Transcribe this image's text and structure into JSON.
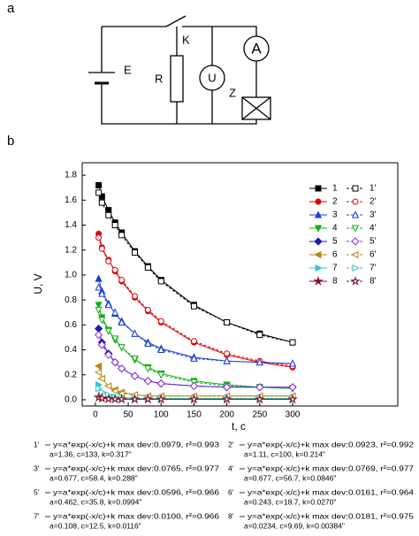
{
  "diagram": {
    "panel_label": "a",
    "battery": "E",
    "resistor": "R",
    "switch": "K",
    "voltmeter": "U",
    "ammeter": "A",
    "load": "Z"
  },
  "chart_data": {
    "type": "scatter",
    "panel_label": "b",
    "x_label": "t, c",
    "y_label": "U, V",
    "x": [
      5,
      10,
      20,
      30,
      40,
      60,
      80,
      100,
      150,
      200,
      250,
      300
    ],
    "xlim": [
      -20,
      460
    ],
    "ylim": [
      -0.05,
      1.9
    ],
    "xticks": [
      0,
      50,
      100,
      150,
      200,
      250,
      300
    ],
    "yticks": [
      {
        "value": 0,
        "label": "0.0"
      },
      0.2,
      0.4,
      0.6,
      0.8,
      {
        "value": 1,
        "label": "1.0"
      },
      1.2,
      1.4,
      1.6,
      1.8
    ],
    "series": [
      {
        "name": "1",
        "color": "#000000",
        "marker": "square",
        "filled": true,
        "values": [
          1.72,
          1.63,
          1.52,
          1.42,
          1.34,
          1.19,
          1.07,
          0.96,
          0.76,
          0.62,
          0.53,
          0.46
        ]
      },
      {
        "name": "1'",
        "color": "#000000",
        "marker": "square",
        "filled": false,
        "values": [
          1.66,
          1.58,
          1.48,
          1.4,
          1.32,
          1.18,
          1.06,
          0.95,
          0.75,
          0.62,
          0.52,
          0.46
        ]
      },
      {
        "name": "2",
        "color": "#e00000",
        "marker": "circle",
        "filled": true,
        "values": [
          1.33,
          1.22,
          1.12,
          1.03,
          0.95,
          0.82,
          0.71,
          0.62,
          0.46,
          0.36,
          0.3,
          0.26
        ]
      },
      {
        "name": "2'",
        "color": "#e00000",
        "marker": "circle",
        "filled": false,
        "values": [
          1.3,
          1.21,
          1.11,
          1.04,
          0.96,
          0.83,
          0.72,
          0.63,
          0.47,
          0.37,
          0.31,
          0.27
        ]
      },
      {
        "name": "3",
        "color": "#1a3fd6",
        "marker": "triangle-up",
        "filled": true,
        "values": [
          0.97,
          0.87,
          0.77,
          0.69,
          0.63,
          0.53,
          0.46,
          0.41,
          0.34,
          0.31,
          0.3,
          0.29
        ]
      },
      {
        "name": "3'",
        "color": "#1a3fd6",
        "marker": "triangle-up",
        "filled": false,
        "values": [
          0.9,
          0.85,
          0.76,
          0.7,
          0.62,
          0.53,
          0.45,
          0.4,
          0.33,
          0.31,
          0.3,
          0.29
        ]
      },
      {
        "name": "4",
        "color": "#10b010",
        "marker": "triangle-down",
        "filled": true,
        "values": [
          0.76,
          0.66,
          0.56,
          0.48,
          0.42,
          0.32,
          0.26,
          0.21,
          0.15,
          0.12,
          0.1,
          0.09
        ]
      },
      {
        "name": "4'",
        "color": "#10b010",
        "marker": "triangle-down",
        "filled": false,
        "values": [
          0.72,
          0.64,
          0.55,
          0.49,
          0.42,
          0.33,
          0.25,
          0.2,
          0.14,
          0.11,
          0.1,
          0.09
        ]
      },
      {
        "name": "5",
        "color": "#1c1ca8",
        "marker": "diamond",
        "filled": true,
        "values": [
          0.57,
          0.46,
          0.37,
          0.3,
          0.25,
          0.19,
          0.15,
          0.13,
          0.11,
          0.1,
          0.1,
          0.1
        ]
      },
      {
        "name": "5'",
        "color": "#8a2be2",
        "marker": "diamond",
        "filled": false,
        "values": [
          0.52,
          0.44,
          0.36,
          0.3,
          0.25,
          0.19,
          0.15,
          0.13,
          0.11,
          0.1,
          0.1,
          0.1
        ]
      },
      {
        "name": "6",
        "color": "#b8860b",
        "marker": "triangle-left",
        "filled": true,
        "values": [
          0.27,
          0.17,
          0.11,
          0.08,
          0.06,
          0.04,
          0.03,
          0.03,
          0.03,
          0.03,
          0.03,
          0.03
        ]
      },
      {
        "name": "6'",
        "color": "#b8860b",
        "marker": "triangle-left",
        "filled": false,
        "values": [
          0.22,
          0.17,
          0.11,
          0.07,
          0.05,
          0.04,
          0.03,
          0.03,
          0.03,
          0.03,
          0.03,
          0.03
        ]
      },
      {
        "name": "7",
        "color": "#30c8c8",
        "marker": "triangle-right",
        "filled": true,
        "values": [
          0.12,
          0.06,
          0.03,
          0.02,
          0.02,
          0.01,
          0.01,
          0.01,
          0.01,
          0.01,
          0.01,
          0.01
        ]
      },
      {
        "name": "7'",
        "color": "#30c8c8",
        "marker": "triangle-right",
        "filled": false,
        "values": [
          0.09,
          0.06,
          0.04,
          0.02,
          0.02,
          0.01,
          0.01,
          0.01,
          0.01,
          0.01,
          0.01,
          0.01
        ]
      },
      {
        "name": "8",
        "color": "#7a1020",
        "marker": "star",
        "filled": true,
        "values": [
          0.02,
          0.012,
          0.007,
          0.005,
          0.004,
          0.004,
          0.004,
          0.004,
          0.004,
          0.004,
          0.004,
          0.004
        ]
      },
      {
        "name": "8'",
        "color": "#7a1020",
        "marker": "star",
        "filled": false,
        "values": [
          0.018,
          0.012,
          0.007,
          0.005,
          0.004,
          0.004,
          0.004,
          0.004,
          0.004,
          0.004,
          0.004,
          0.004
        ]
      }
    ],
    "fits": [
      {
        "label": "1'",
        "equation": "y=a*exp(-x/c)+k max dev:0.0979, r²=0.993",
        "params": "a=1.36, c=133, k=0.317\""
      },
      {
        "label": "2'",
        "equation": "y=a*exp(-x/c)+k max dev:0.0923, r²=0.992",
        "params": "a=1.11, c=100, k=0.214\""
      },
      {
        "label": "3'",
        "equation": "y=a*exp(-x/c)+k max dev:0.0765, r²=0.977",
        "params": "a=0.677, c=58.4, k=0.288\""
      },
      {
        "label": "4'",
        "equation": "y=a*exp(-x/c)+k max dev:0.0769, r²=0.977",
        "params": "a=0.677, c=56.7, k=0.0846\""
      },
      {
        "label": "5'",
        "equation": "y=a*exp(-x/c)+k max dev:0.0596, r²=0.966",
        "params": "a=0.462, c=35.8, k=0.0994\""
      },
      {
        "label": "6'",
        "equation": "y=a*exp(-x/c)+k max dev:0.0161, r²=0.964",
        "params": "a=0.243, c=18.7, k=0.0270\""
      },
      {
        "label": "7'",
        "equation": "y=a*exp(-x/c)+k max dev:0.0100, r²=0.966",
        "params": "a=0.108, c=12.5, k=0.0116\""
      },
      {
        "label": "8'",
        "equation": "y=a*exp(-x/c)+k max dev:0.0181, r²=0.975",
        "params": "a=0.0234, c=9.69, k=0.00384\""
      }
    ]
  }
}
